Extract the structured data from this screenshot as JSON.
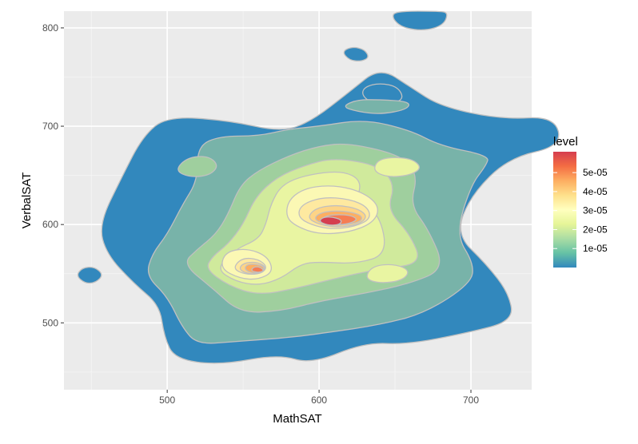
{
  "chart_data": {
    "type": "filled-density-contour",
    "title": "",
    "xlabel": "MathSAT",
    "ylabel": "VerbalSAT",
    "xlim": [
      432,
      740
    ],
    "ylim": [
      432,
      817
    ],
    "x_ticks": [
      500,
      600,
      700
    ],
    "x_tick_labels": [
      "500",
      "600",
      "700"
    ],
    "y_ticks": [
      500,
      600,
      700,
      800
    ],
    "y_tick_labels": [
      "500",
      "600",
      "700",
      "800"
    ],
    "grid": true,
    "legend": {
      "title": "level",
      "position": "right",
      "colorbar_range": [
        0,
        6.1e-05
      ],
      "ticks": [
        1e-05,
        2e-05,
        3e-05,
        4e-05,
        5e-05
      ],
      "tick_labels": [
        "1e-05",
        "2e-05",
        "3e-05",
        "4e-05",
        "5e-05"
      ],
      "colors": [
        "#3288bd",
        "#66c2a5",
        "#abdda4",
        "#e6f598",
        "#ffffbf",
        "#fee08b",
        "#fdae61",
        "#f46d43",
        "#d53e4f"
      ]
    },
    "levels": [
      {
        "level": 5e-06,
        "color": "#3288bd",
        "regions": [
          [
            [
              478,
              540
            ],
            [
              495,
              518
            ],
            [
              498,
              486
            ],
            [
              505,
              463
            ],
            [
              535,
              457
            ],
            [
              573,
              468
            ],
            [
              595,
              458
            ],
            [
              630,
              480
            ],
            [
              658,
              478
            ],
            [
              698,
              490
            ],
            [
              728,
              502
            ],
            [
              725,
              530
            ],
            [
              710,
              560
            ],
            [
              690,
              590
            ],
            [
              700,
              630
            ],
            [
              725,
              668
            ],
            [
              760,
              680
            ],
            [
              755,
              710
            ],
            [
              720,
              707
            ],
            [
              680,
              720
            ],
            [
              660,
              740
            ],
            [
              640,
              760
            ],
            [
              620,
              735
            ],
            [
              595,
              705
            ],
            [
              575,
              694
            ],
            [
              540,
              706
            ],
            [
              500,
              710
            ],
            [
              484,
              690
            ],
            [
              470,
              648
            ],
            [
              455,
              600
            ],
            [
              460,
              570
            ]
          ],
          [
            [
              440,
              548
            ],
            [
              446,
              540
            ],
            [
              453,
              541
            ],
            [
              458,
              549
            ],
            [
              452,
              557
            ],
            [
              444,
              556
            ]
          ],
          [
            [
              648,
              810
            ],
            [
              655,
              800
            ],
            [
              670,
              797
            ],
            [
              682,
              803
            ],
            [
              685,
              815
            ],
            [
              680,
              817
            ],
            [
              650,
              817
            ]
          ],
          [
            [
              615,
              776
            ],
            [
              620,
              767
            ],
            [
              628,
              766
            ],
            [
              633,
              770
            ],
            [
              630,
              778
            ],
            [
              622,
              781
            ]
          ],
          [
            [
              628,
              732
            ],
            [
              634,
              724
            ],
            [
              645,
              722
            ],
            [
              656,
              727
            ],
            [
              652,
              740
            ],
            [
              640,
              744
            ],
            [
              630,
              740
            ]
          ]
        ]
      },
      {
        "level": 1e-05,
        "color": "#78b3a9",
        "regions": [
          [
            [
              486,
              548
            ],
            [
              500,
              527
            ],
            [
              510,
              495
            ],
            [
              520,
              478
            ],
            [
              545,
              481
            ],
            [
              580,
              485
            ],
            [
              605,
              490
            ],
            [
              640,
              498
            ],
            [
              670,
              510
            ],
            [
              700,
              540
            ],
            [
              702,
              560
            ],
            [
              690,
              590
            ],
            [
              700,
              640
            ],
            [
              710,
              660
            ],
            [
              712,
              670
            ],
            [
              680,
              680
            ],
            [
              660,
              696
            ],
            [
              630,
              707
            ],
            [
              600,
              700
            ],
            [
              580,
              697
            ],
            [
              560,
              690
            ],
            [
              535,
              690
            ],
            [
              520,
              680
            ],
            [
              520,
              645
            ],
            [
              510,
              620
            ],
            [
              500,
              590
            ],
            [
              490,
              570
            ]
          ],
          [
            [
              615,
              720
            ],
            [
              625,
              715
            ],
            [
              640,
              712
            ],
            [
              658,
              717
            ],
            [
              660,
              725
            ],
            [
              640,
              727
            ],
            [
              625,
              727
            ]
          ]
        ]
      },
      {
        "level": 1.5e-05,
        "color": "#9fcf9e",
        "regions": [
          [
            [
              510,
              560
            ],
            [
              530,
              535
            ],
            [
              548,
              510
            ],
            [
              575,
              512
            ],
            [
              600,
              522
            ],
            [
              630,
              530
            ],
            [
              660,
              540
            ],
            [
              683,
              555
            ],
            [
              672,
              595
            ],
            [
              660,
              620
            ],
            [
              665,
              650
            ],
            [
              655,
              670
            ],
            [
              620,
              683
            ],
            [
              600,
              680
            ],
            [
              580,
              670
            ],
            [
              560,
              655
            ],
            [
              548,
              640
            ],
            [
              540,
              610
            ],
            [
              532,
              590
            ],
            [
              520,
              575
            ]
          ],
          [
            [
              505,
              655
            ],
            [
              515,
              648
            ],
            [
              528,
              650
            ],
            [
              534,
              660
            ],
            [
              527,
              670
            ],
            [
              513,
              668
            ]
          ],
          [
            [
              540,
              575
            ],
            [
              548,
              570
            ],
            [
              556,
              571
            ],
            [
              560,
              577
            ],
            [
              552,
              582
            ],
            [
              544,
              581
            ]
          ]
        ]
      },
      {
        "level": 2e-05,
        "color": "#d0ea9c",
        "regions": [
          [
            [
              525,
              555
            ],
            [
              540,
              538
            ],
            [
              560,
              528
            ],
            [
              585,
              535
            ],
            [
              610,
              545
            ],
            [
              640,
              555
            ],
            [
              668,
              560
            ],
            [
              660,
              590
            ],
            [
              645,
              615
            ],
            [
              650,
              640
            ],
            [
              640,
              660
            ],
            [
              610,
              668
            ],
            [
              590,
              660
            ],
            [
              572,
              648
            ],
            [
              558,
              628
            ],
            [
              550,
              600
            ],
            [
              540,
              580
            ],
            [
              530,
              568
            ]
          ]
        ]
      },
      {
        "level": 2.5e-05,
        "color": "#e9f5a2",
        "regions": [
          [
            [
              532,
              555
            ],
            [
              545,
              542
            ],
            [
              560,
              538
            ],
            [
              575,
              545
            ],
            [
              588,
              560
            ],
            [
              600,
              562
            ],
            [
              625,
              560
            ],
            [
              645,
              570
            ],
            [
              640,
              610
            ],
            [
              625,
              625
            ],
            [
              628,
              645
            ],
            [
              615,
              655
            ],
            [
              590,
              650
            ],
            [
              575,
              640
            ],
            [
              568,
              620
            ],
            [
              565,
              600
            ],
            [
              560,
              585
            ],
            [
              545,
              575
            ]
          ],
          [
            [
              635,
              655
            ],
            [
              645,
              648
            ],
            [
              660,
              650
            ],
            [
              668,
              658
            ],
            [
              660,
              668
            ],
            [
              640,
              668
            ]
          ],
          [
            [
              630,
              545
            ],
            [
              640,
              540
            ],
            [
              655,
              543
            ],
            [
              660,
              553
            ],
            [
              650,
              560
            ],
            [
              635,
              558
            ]
          ]
        ]
      },
      {
        "level": 3e-05,
        "color": "#fbf8b4",
        "regions": [
          [
            [
              535,
              555
            ],
            [
              548,
              545
            ],
            [
              560,
              544
            ],
            [
              570,
              552
            ],
            [
              566,
              568
            ],
            [
              552,
              576
            ],
            [
              538,
              572
            ]
          ],
          [
            [
              578,
              608
            ],
            [
              585,
              598
            ],
            [
              600,
              590
            ],
            [
              620,
              592
            ],
            [
              636,
              602
            ],
            [
              640,
              618
            ],
            [
              630,
              632
            ],
            [
              612,
              640
            ],
            [
              592,
              638
            ],
            [
              580,
              626
            ]
          ]
        ]
      },
      {
        "level": 3.5e-05,
        "color": "#fee9a0",
        "regions": [
          [
            [
              543,
              555
            ],
            [
              552,
              549
            ],
            [
              562,
              550
            ],
            [
              566,
              557
            ],
            [
              560,
              565
            ],
            [
              549,
              566
            ]
          ],
          [
            [
              586,
              608
            ],
            [
              594,
              600
            ],
            [
              608,
              595
            ],
            [
              624,
              598
            ],
            [
              634,
              606
            ],
            [
              632,
              618
            ],
            [
              620,
              626
            ],
            [
              602,
              628
            ],
            [
              588,
              620
            ]
          ]
        ]
      },
      {
        "level": 4e-05,
        "color": "#fdd486",
        "regions": [
          [
            [
              547,
              554
            ],
            [
              555,
              549
            ],
            [
              563,
              551
            ],
            [
              565,
              557
            ],
            [
              559,
              562
            ],
            [
              550,
              561
            ]
          ],
          [
            [
              592,
              607
            ],
            [
              600,
              600
            ],
            [
              612,
              597
            ],
            [
              626,
              600
            ],
            [
              632,
              608
            ],
            [
              626,
              616
            ],
            [
              612,
              620
            ],
            [
              598,
              617
            ]
          ]
        ]
      },
      {
        "level": 4.5e-05,
        "color": "#fdae61",
        "regions": [
          [
            [
              551,
              554
            ],
            [
              557,
              550
            ],
            [
              563,
              552
            ],
            [
              564,
              557
            ],
            [
              558,
              560
            ],
            [
              552,
              559
            ]
          ],
          [
            [
              596,
              606
            ],
            [
              604,
              600
            ],
            [
              616,
              599
            ],
            [
              628,
              603
            ],
            [
              628,
              610
            ],
            [
              616,
              614
            ],
            [
              602,
              613
            ]
          ]
        ]
      },
      {
        "level": 5e-05,
        "color": "#f57d53",
        "regions": [
          [
            [
              555,
              553
            ],
            [
              560,
              551
            ],
            [
              564,
              553
            ],
            [
              561,
              557
            ],
            [
              557,
              557
            ]
          ],
          [
            [
              600,
              604
            ],
            [
              608,
              600
            ],
            [
              618,
              600
            ],
            [
              626,
              605
            ],
            [
              620,
              610
            ],
            [
              606,
              610
            ]
          ]
        ]
      },
      {
        "level": 5.5e-05,
        "color": "#d53e4f",
        "regions": [
          [
            [
              600,
              603
            ],
            [
              606,
              599
            ],
            [
              614,
              600
            ],
            [
              615,
              605
            ],
            [
              608,
              608
            ],
            [
              602,
              607
            ]
          ]
        ]
      }
    ]
  }
}
